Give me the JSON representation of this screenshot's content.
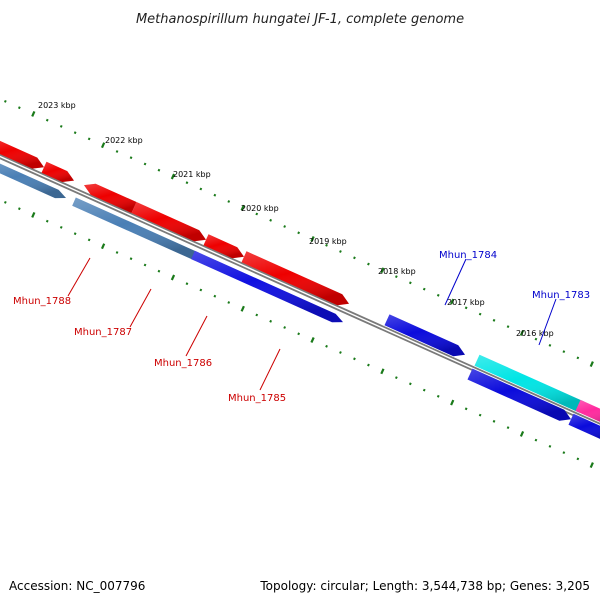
{
  "title": "Methanospirillum hungatei JF-1, complete genome",
  "footer": {
    "accession": "Accession: NC_007796",
    "summary": "Topology: circular; Length: 3,544,738 bp; Genes: 3,205"
  },
  "colors": {
    "backbone": "#7a7a7a",
    "tick": "#1a7a1a",
    "red_label": "#cc0000",
    "blue_label": "#0000cc"
  },
  "tick_labels": [
    "2023 kbp",
    "2022 kbp",
    "2021 kbp",
    "2020 kbp",
    "2019 kbp",
    "2018 kbp",
    "2017 kbp",
    "2016 kbp"
  ],
  "gene_labels": [
    {
      "text": "Mhun_1788",
      "color": "red"
    },
    {
      "text": "Mhun_1787",
      "color": "red"
    },
    {
      "text": "Mhun_1786",
      "color": "red"
    },
    {
      "text": "Mhun_1785",
      "color": "red"
    },
    {
      "text": "Mhun_1784",
      "color": "blue"
    },
    {
      "text": "Mhun_1783",
      "color": "blue"
    }
  ]
}
